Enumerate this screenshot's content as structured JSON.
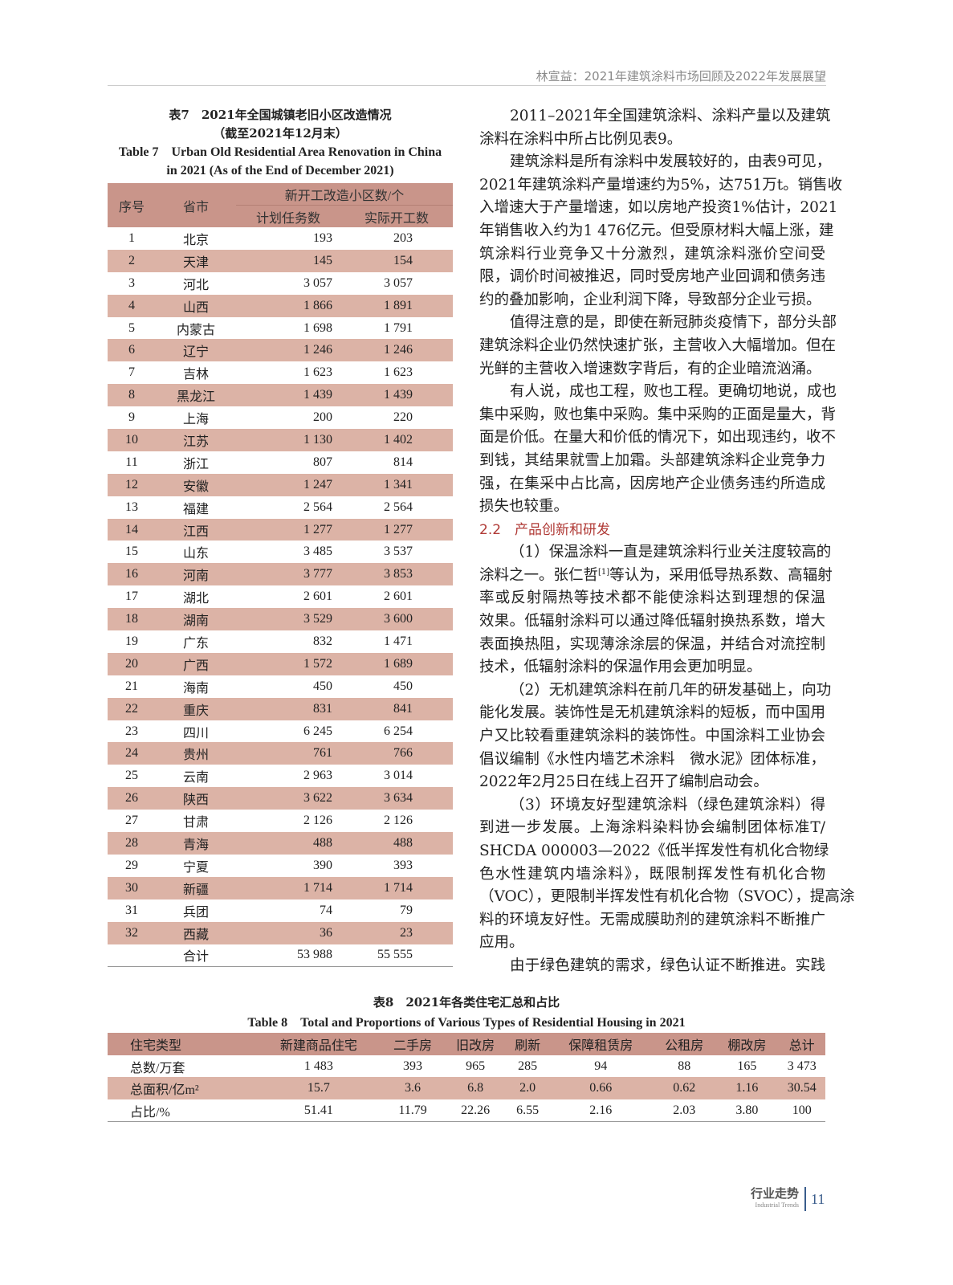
{
  "header": {
    "running_title": "林宣益：2021年建筑涂料市场回顾及2022年发展展望"
  },
  "table7": {
    "caption_zh_1": "表7　2021年全国城镇老旧小区改造情况",
    "caption_zh_2": "（截至2021年12月末）",
    "caption_en_1": "Table 7　Urban Old Residential Area Renovation in China",
    "caption_en_2": "in 2021 (As of the End of December 2021)",
    "col_no": "序号",
    "col_prov": "省市",
    "col_group": "新开工改造小区数/个",
    "col_plan": "计划任务数",
    "col_actual": "实际开工数",
    "rows": [
      [
        "1",
        "北京",
        "193",
        "203"
      ],
      [
        "2",
        "天津",
        "145",
        "154"
      ],
      [
        "3",
        "河北",
        "3 057",
        "3 057"
      ],
      [
        "4",
        "山西",
        "1 866",
        "1 891"
      ],
      [
        "5",
        "内蒙古",
        "1 698",
        "1 791"
      ],
      [
        "6",
        "辽宁",
        "1 246",
        "1 246"
      ],
      [
        "7",
        "吉林",
        "1 623",
        "1 623"
      ],
      [
        "8",
        "黑龙江",
        "1 439",
        "1 439"
      ],
      [
        "9",
        "上海",
        "200",
        "220"
      ],
      [
        "10",
        "江苏",
        "1 130",
        "1 402"
      ],
      [
        "11",
        "浙江",
        "807",
        "814"
      ],
      [
        "12",
        "安徽",
        "1 247",
        "1 341"
      ],
      [
        "13",
        "福建",
        "2 564",
        "2 564"
      ],
      [
        "14",
        "江西",
        "1 277",
        "1 277"
      ],
      [
        "15",
        "山东",
        "3 485",
        "3 537"
      ],
      [
        "16",
        "河南",
        "3 777",
        "3 853"
      ],
      [
        "17",
        "湖北",
        "2 601",
        "2 601"
      ],
      [
        "18",
        "湖南",
        "3 529",
        "3 600"
      ],
      [
        "19",
        "广东",
        "832",
        "1 471"
      ],
      [
        "20",
        "广西",
        "1 572",
        "1 689"
      ],
      [
        "21",
        "海南",
        "450",
        "450"
      ],
      [
        "22",
        "重庆",
        "831",
        "841"
      ],
      [
        "23",
        "四川",
        "6 245",
        "6 254"
      ],
      [
        "24",
        "贵州",
        "761",
        "766"
      ],
      [
        "25",
        "云南",
        "2 963",
        "3 014"
      ],
      [
        "26",
        "陕西",
        "3 622",
        "3 634"
      ],
      [
        "27",
        "甘肃",
        "2 126",
        "2 126"
      ],
      [
        "28",
        "青海",
        "488",
        "488"
      ],
      [
        "29",
        "宁夏",
        "390",
        "393"
      ],
      [
        "30",
        "新疆",
        "1 714",
        "1 714"
      ],
      [
        "31",
        "兵团",
        "74",
        "79"
      ],
      [
        "32",
        "西藏",
        "36",
        "23"
      ]
    ],
    "total_label": "合计",
    "total_plan": "53 988",
    "total_actual": "55 555"
  },
  "body": {
    "blocks": [
      {
        "type": "p",
        "lines": [
          "2011–2021年全国建筑涂料、涂料产量以及建筑",
          "涂料在涂料中所占比例见表9。"
        ]
      },
      {
        "type": "p",
        "lines": [
          "建筑涂料是所有涂料中发展较好的，由表9可见，",
          "2021年建筑涂料产量增速约为5%，达751万t。销售收",
          "入增速大于产量增速，如以房地产投资1%估计，2021",
          "年销售收入约为1 476亿元。但受原材料大幅上涨，建",
          "筑涂料行业竞争又十分激烈，建筑涂料涨价空间受",
          "限，调价时间被推迟，同时受房地产业回调和债务违",
          "约的叠加影响，企业利润下降，导致部分企业亏损。"
        ]
      },
      {
        "type": "p",
        "lines": [
          "值得注意的是，即使在新冠肺炎疫情下，部分头部",
          "建筑涂料企业仍然快速扩张，主营收入大幅增加。但在",
          "光鲜的主营收入增速数字背后，有的企业暗流汹涌。"
        ]
      },
      {
        "type": "p",
        "lines": [
          "有人说，成也工程，败也工程。更确切地说，成也",
          "集中采购，败也集中采购。集中采购的正面是量大，背",
          "面是价低。在量大和价低的情况下，如出现违约，收不",
          "到钱，其结果就雪上加霜。头部建筑涂料企业竞争力",
          "强，在集采中占比高，因房地产企业债务违约所造成",
          "损失也较重。"
        ]
      },
      {
        "type": "h",
        "text": "2.2　产品创新和研发"
      },
      {
        "type": "p",
        "lines": [
          "（1）保温涂料一直是建筑涂料行业关注度较高的",
          "涂料之一。张仁哲[1]等认为，采用低导热系数、高辐射",
          "率或反射隔热等技术都不能使涂料达到理想的保温",
          "效果。低辐射涂料可以通过降低辐射换热系数，增大",
          "表面换热阻，实现薄涂涂层的保温，并结合对流控制",
          "技术，低辐射涂料的保温作用会更加明显。"
        ]
      },
      {
        "type": "p",
        "lines": [
          "（2）无机建筑涂料在前几年的研发基础上，向功",
          "能化发展。装饰性是无机建筑涂料的短板，而中国用",
          "户又比较看重建筑涂料的装饰性。中国涂料工业协会",
          "倡议编制《水性内墙艺术涂料　微水泥》团体标准，",
          "2022年2月25日在线上召开了编制启动会。"
        ]
      },
      {
        "type": "p",
        "lines": [
          "（3）环境友好型建筑涂料（绿色建筑涂料）得",
          "到进一步发展。上海涂料染料协会编制团体标准T/",
          "SHCDA 000003—2022《低半挥发性有机化合物绿",
          "色水性建筑内墙涂料》，既限制挥发性有机化合物",
          "（VOC），更限制半挥发性有机化合物（SVOC），提高涂",
          "料的环境友好性。无需成膜助剂的建筑涂料不断推广",
          "应用。"
        ]
      },
      {
        "type": "p",
        "open": true,
        "lines": [
          "由于绿色建筑的需求，绿色认证不断推进。实践"
        ]
      }
    ]
  },
  "table8": {
    "caption_zh": "表8　2021年各类住宅汇总和占比",
    "caption_en": "Table 8　Total and Proportions of Various Types of Residential Housing in 2021",
    "headers": [
      "住宅类型",
      "新建商品住宅",
      "二手房",
      "旧改房",
      "刷新",
      "保障租赁房",
      "公租房",
      "棚改房",
      "总计"
    ],
    "rows": [
      [
        "总数/万套",
        "1 483",
        "393",
        "965",
        "285",
        "94",
        "88",
        "165",
        "3 473"
      ],
      [
        "总面积/亿m²",
        "15.7",
        "3.6",
        "6.8",
        "2.0",
        "0.66",
        "0.62",
        "1.16",
        "30.54"
      ],
      [
        "占比/%",
        "51.41",
        "11.79",
        "22.26",
        "6.55",
        "2.16",
        "2.03",
        "3.80",
        "100"
      ]
    ]
  },
  "footer": {
    "section_zh": "行业走势",
    "section_en": "Industrial Trends",
    "page_number": "11"
  },
  "colors": {
    "table_header": "#c9958a",
    "table_band": "#dcb3a6",
    "section_heading": "#b03a36",
    "page_number": "#3a5d8c"
  }
}
